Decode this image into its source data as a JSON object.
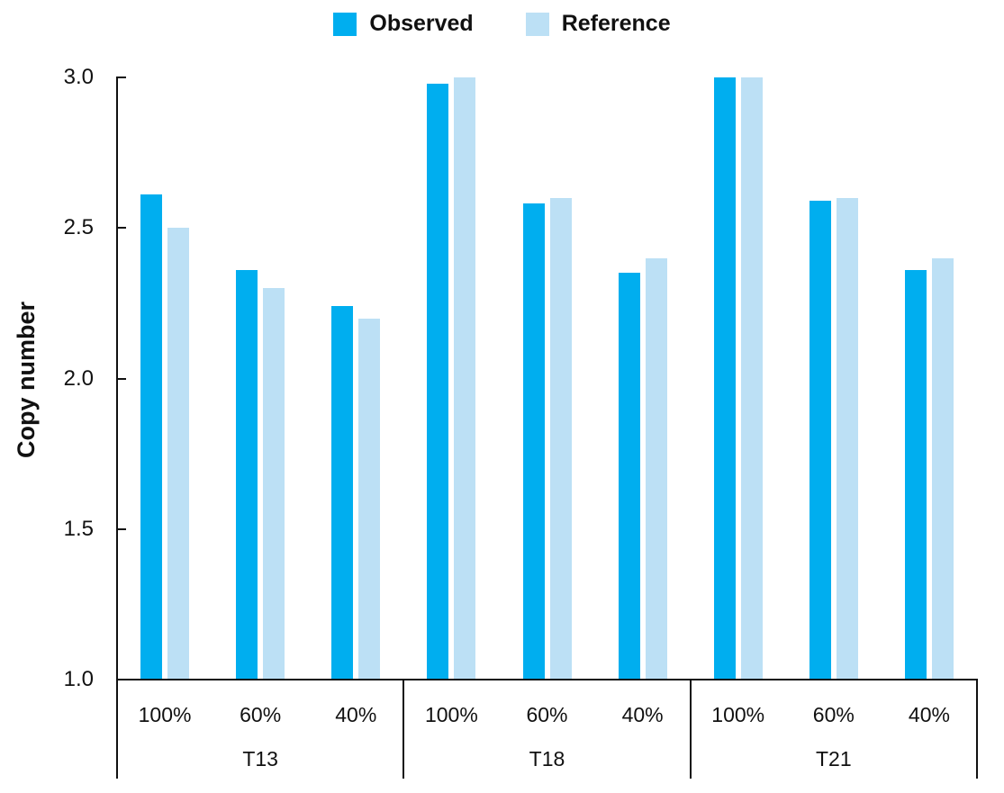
{
  "chart_data": {
    "type": "bar",
    "title": "",
    "ylabel": "Copy number",
    "xlabel": "",
    "ylim": [
      1.0,
      3.0
    ],
    "yticks": [
      3.0,
      2.5,
      2.0,
      1.5,
      1.0
    ],
    "ytick_labels": [
      "3.0",
      "2.5",
      "2.0",
      "1.5",
      "1.0"
    ],
    "grid": false,
    "legend_position": "top-center",
    "groups": [
      "T13",
      "T18",
      "T21"
    ],
    "categories": [
      "100%",
      "60%",
      "40%"
    ],
    "series": [
      {
        "name": "Observed",
        "color": "#00AEEF",
        "values": [
          [
            2.61,
            2.36,
            2.24
          ],
          [
            2.98,
            2.58,
            2.35
          ],
          [
            3.0,
            2.59,
            2.36
          ]
        ]
      },
      {
        "name": "Reference",
        "color": "#BCE0F5",
        "values": [
          [
            2.5,
            2.3,
            2.2
          ],
          [
            3.0,
            2.6,
            2.4
          ],
          [
            3.0,
            2.6,
            2.4
          ]
        ]
      }
    ],
    "axis_color": "#111111"
  }
}
